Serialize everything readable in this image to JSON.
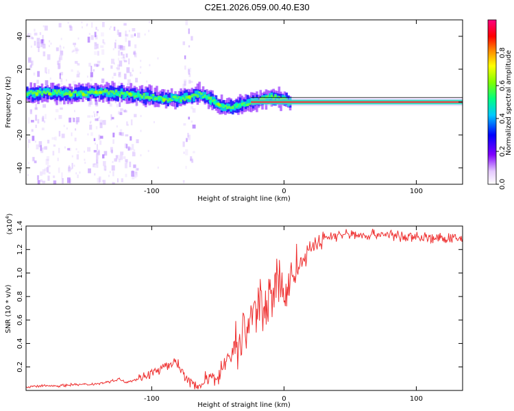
{
  "title": "C2E1.2026.059.00.40.E30",
  "colors": {
    "line": "#ee3030",
    "axis": "#000000"
  },
  "chart_data": [
    {
      "type": "heatmap",
      "xlabel": "Height of straight line (km)",
      "ylabel": "Frequency (Hz)",
      "xlim": [
        -195,
        135
      ],
      "ylim": [
        -50,
        50
      ],
      "xticks": [
        -100,
        0,
        100
      ],
      "yticks": [
        -40,
        -20,
        0,
        20,
        40
      ],
      "ridge": {
        "x": [
          -195,
          -180,
          -160,
          -140,
          -120,
          -110,
          -100,
          -90,
          -80,
          -70,
          -65,
          -60,
          -55,
          -50,
          -45,
          -40,
          -35,
          -30,
          -25,
          -20,
          -15,
          -10,
          -5,
          0,
          5,
          20,
          60,
          100,
          135
        ],
        "freq": [
          5,
          6,
          5,
          6,
          5,
          4,
          3,
          2,
          2,
          3,
          5,
          3,
          1,
          -2,
          -3,
          -3,
          -2,
          -1,
          0,
          1,
          2,
          3,
          2,
          1,
          0,
          0,
          0,
          0,
          0
        ]
      },
      "colorbar": {
        "label": "Normalized spectral amplitude",
        "ticks": [
          "0.0",
          "0.2",
          "0.4",
          "0.6",
          "0.8"
        ],
        "range": [
          0,
          1
        ]
      }
    },
    {
      "type": "line",
      "xlabel": "Height of straight line (km)",
      "ylabel": "SNR (10 * v/v)",
      "multiplier": "(x10",
      "multiplier_exp": "4",
      "multiplier_close": ")",
      "xlim": [
        -195,
        135
      ],
      "ylim": [
        0,
        1.4
      ],
      "xticks": [
        -100,
        0,
        100
      ],
      "yticks": [
        "0.2",
        "0.4",
        "0.6",
        "0.8",
        "1.0",
        "1.2",
        "1.4"
      ],
      "series": [
        {
          "name": "SNR",
          "x": [
            -195,
            -180,
            -170,
            -160,
            -150,
            -140,
            -130,
            -125,
            -120,
            -110,
            -100,
            -95,
            -90,
            -85,
            -82,
            -80,
            -75,
            -70,
            -65,
            -60,
            -55,
            -50,
            -45,
            -40,
            -35,
            -30,
            -25,
            -20,
            -15,
            -10,
            -5,
            0,
            5,
            10,
            15,
            20,
            25,
            30,
            40,
            50,
            60,
            70,
            80,
            90,
            100,
            110,
            120,
            135
          ],
          "values": [
            0.03,
            0.04,
            0.04,
            0.05,
            0.05,
            0.06,
            0.08,
            0.1,
            0.07,
            0.1,
            0.15,
            0.17,
            0.2,
            0.22,
            0.26,
            0.22,
            0.12,
            0.06,
            0.04,
            0.06,
            0.1,
            0.14,
            0.22,
            0.32,
            0.4,
            0.5,
            0.62,
            0.7,
            0.76,
            0.82,
            0.9,
            0.82,
            0.95,
            1.05,
            1.1,
            1.2,
            1.25,
            1.3,
            1.32,
            1.33,
            1.32,
            1.33,
            1.33,
            1.3,
            1.31,
            1.3,
            1.29,
            1.29
          ]
        }
      ]
    }
  ]
}
